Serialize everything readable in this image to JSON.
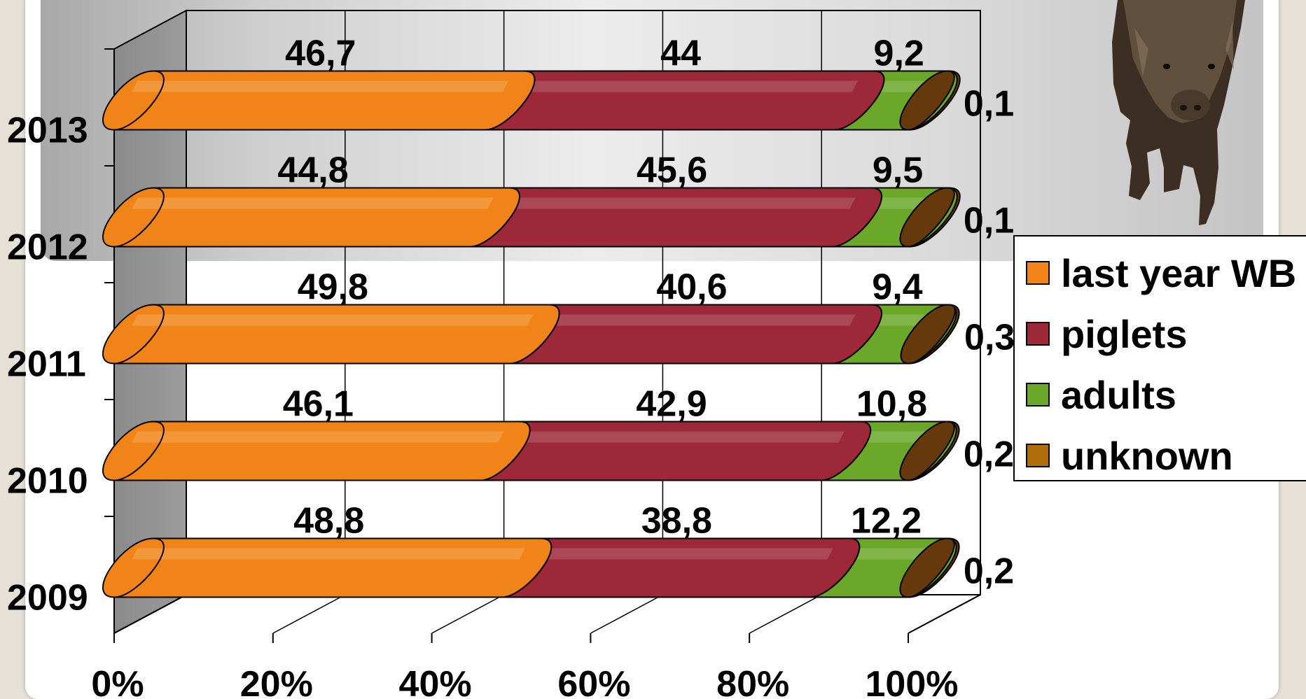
{
  "chart_data": {
    "type": "bar",
    "orientation": "horizontal",
    "stacked_percent": true,
    "three_d": true,
    "categories": [
      "2013",
      "2012",
      "2011",
      "2010",
      "2009"
    ],
    "series": [
      {
        "name": "last year WB",
        "values": [
          46.7,
          44.8,
          49.8,
          46.1,
          48.8
        ],
        "color": "#f08418"
      },
      {
        "name": "piglets",
        "values": [
          44,
          45.6,
          40.6,
          42.9,
          38.8
        ],
        "color": "#9c2838"
      },
      {
        "name": "adults",
        "values": [
          9.2,
          9.5,
          9.4,
          10.8,
          12.2
        ],
        "color": "#6ba82a"
      },
      {
        "name": "unknown",
        "values": [
          0.1,
          0.1,
          0.3,
          0.2,
          0.2
        ],
        "color": "#6a3c0c"
      }
    ],
    "data_labels": [
      [
        "46,7",
        "44",
        "9,2",
        "0,1"
      ],
      [
        "44,8",
        "45,6",
        "9,5",
        "0,1"
      ],
      [
        "49,8",
        "40,6",
        "9,4",
        "0,3"
      ],
      [
        "46,1",
        "42,9",
        "10,8",
        "0,2"
      ],
      [
        "48,8",
        "38,8",
        "12,2",
        "0,2"
      ]
    ],
    "x_ticks": [
      "0%",
      "20%",
      "40%",
      "60%",
      "80%",
      "100%"
    ],
    "xlim": [
      0,
      100
    ],
    "grid": true,
    "legend_position": "right"
  },
  "image": {
    "icon": "wild-boar-photo"
  }
}
